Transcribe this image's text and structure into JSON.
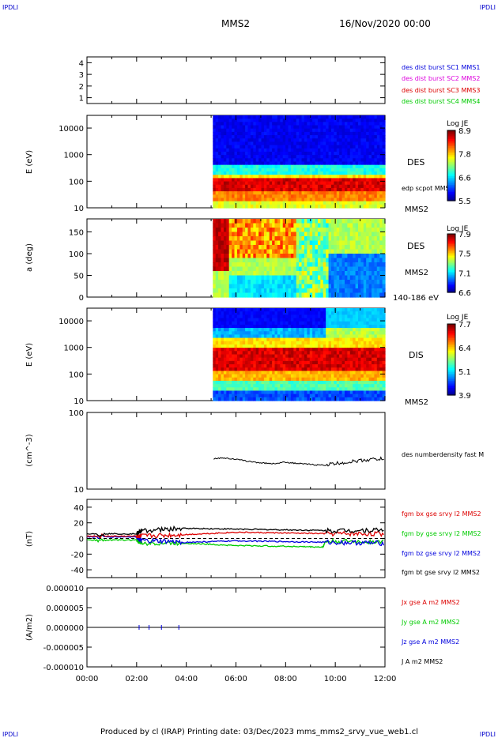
{
  "header": {
    "corner_tl": "IPDLI",
    "corner_tr": "IPDLI",
    "corner_bl": "IPDLI",
    "corner_br": "IPDLI",
    "title": "MMS2",
    "datetime": "16/Nov/2020 00:00"
  },
  "footer": {
    "text": "Produced by cl (IRAP)   Printing date: 03/Dec/2023   mms_mms2_srvy_vue_web1.cl"
  },
  "colors": {
    "red": "#dd0000",
    "green": "#00cc00",
    "blue": "#0000dd",
    "magenta": "#dd00dd",
    "black": "#000000"
  },
  "chart_data": [
    {
      "type": "line",
      "panel": "burst",
      "y_ticks": [
        "4",
        "3",
        "2",
        "1"
      ],
      "ylim": [
        0.5,
        4.5
      ],
      "legend": [
        {
          "text": "des dist burst SC1 MMS1",
          "color": "#0000dd"
        },
        {
          "text": "des dist burst SC2 MMS2",
          "color": "#dd00dd"
        },
        {
          "text": "des dist burst SC3 MMS3",
          "color": "#dd0000"
        },
        {
          "text": "des dist burst SC4 MMS4",
          "color": "#00cc00"
        }
      ]
    },
    {
      "type": "heatmap",
      "panel": "des_energy",
      "ylabel": "E (eV)",
      "y_ticks": [
        "10000",
        "1000",
        "100",
        "10"
      ],
      "y_log": true,
      "ylim": [
        10,
        30000
      ],
      "data_start_hours": 5.07,
      "right_labels": [
        "DES",
        "edp scpot MMS2",
        "MMS2"
      ],
      "colorbar": {
        "title": "Log JE",
        "ticks": [
          "8.9",
          "7.8",
          "6.6",
          "5.5"
        ]
      }
    },
    {
      "type": "heatmap",
      "panel": "des_pitch",
      "ylabel": "a (deg)",
      "y_ticks": [
        "150",
        "100",
        "50",
        "0"
      ],
      "ylim": [
        0,
        180
      ],
      "data_start_hours": 5.07,
      "right_labels": [
        "DES",
        "MMS2",
        "140-186 eV"
      ],
      "colorbar": {
        "title": "Log JE",
        "ticks": [
          "7.9",
          "7.5",
          "7.1",
          "6.6"
        ]
      }
    },
    {
      "type": "heatmap",
      "panel": "dis_energy",
      "ylabel": "E (eV)",
      "y_ticks": [
        "10000",
        "1000",
        "100",
        "10"
      ],
      "y_log": true,
      "ylim": [
        10,
        30000
      ],
      "data_start_hours": 5.07,
      "right_labels": [
        "DIS",
        "MMS2"
      ],
      "colorbar": {
        "title": "Log JE",
        "ticks": [
          "7.7",
          "6.4",
          "5.1",
          "3.9"
        ]
      }
    },
    {
      "type": "line",
      "panel": "density",
      "ylabel": "(cm^-3)",
      "y_ticks": [
        "100",
        "10"
      ],
      "y_log": true,
      "ylim": [
        10,
        100
      ],
      "series": [
        {
          "name": "des numberdensity fast M",
          "color": "#000000",
          "x": [
            5.1,
            5.5,
            6.0,
            6.5,
            7.0,
            7.5,
            8.0,
            8.5,
            9.0,
            9.5,
            10.0,
            10.5,
            11.0,
            11.5,
            12.0
          ],
          "values": [
            25.0,
            25.5,
            24.5,
            23.0,
            22.0,
            21.5,
            22.5,
            21.5,
            21.0,
            20.5,
            21.5,
            22.5,
            23.5,
            24.5,
            25.0
          ]
        }
      ]
    },
    {
      "type": "line",
      "panel": "fgm",
      "ylabel": "(nT)",
      "y_ticks": [
        "40",
        "20",
        "0",
        "-20",
        "-40"
      ],
      "ylim": [
        -50,
        50
      ],
      "series": [
        {
          "name": "fgm bx gse srvy l2 MMS2",
          "color": "#dd0000",
          "x": [
            0,
            2,
            2.2,
            4,
            6,
            8,
            10,
            12
          ],
          "values": [
            3,
            3,
            3,
            5,
            8,
            7,
            6,
            6
          ]
        },
        {
          "name": "fgm by gse srvy l2 MMS2",
          "color": "#00cc00",
          "x": [
            0,
            2,
            2.2,
            4,
            6,
            8,
            9.5,
            9.6,
            12
          ],
          "values": [
            -2,
            -2,
            -6,
            -6,
            -9,
            -10,
            -11,
            -4,
            -4
          ]
        },
        {
          "name": "fgm bz gse srvy l2 MMS2",
          "color": "#0000dd",
          "x": [
            0,
            2,
            2.2,
            4,
            6,
            8,
            10,
            12
          ],
          "values": [
            2,
            2,
            -3,
            -5,
            -3,
            -4,
            -5,
            -6
          ]
        },
        {
          "name": "fgm bt gse srvy l2 MMS2",
          "color": "#000000",
          "x": [
            0,
            2,
            2.2,
            4,
            6,
            8,
            10,
            12
          ],
          "values": [
            6,
            6,
            10,
            13,
            12,
            11,
            10,
            11
          ]
        }
      ]
    },
    {
      "type": "line",
      "panel": "current",
      "ylabel": "(A/m2)",
      "y_ticks": [
        "0.000010",
        "0.000005",
        "0.000000",
        "-0.000005",
        "-0.000010"
      ],
      "ylim": [
        -1e-05,
        1e-05
      ],
      "series": [
        {
          "name": "Jx gse A m2 MMS2",
          "color": "#dd0000",
          "values": [
            0
          ]
        },
        {
          "name": "Jy gse A m2 MMS2",
          "color": "#00cc00",
          "values": [
            0
          ]
        },
        {
          "name": "Jz gse A m2 MMS2",
          "color": "#0000dd",
          "values": [
            0
          ]
        },
        {
          "name": "J A m2 MMS2",
          "color": "#000000",
          "values": [
            0
          ]
        }
      ]
    }
  ],
  "x_axis": {
    "ticks": [
      "00:00",
      "02:00",
      "04:00",
      "06:00",
      "08:00",
      "10:00",
      "12:00"
    ],
    "range_hours": [
      0,
      12
    ]
  }
}
